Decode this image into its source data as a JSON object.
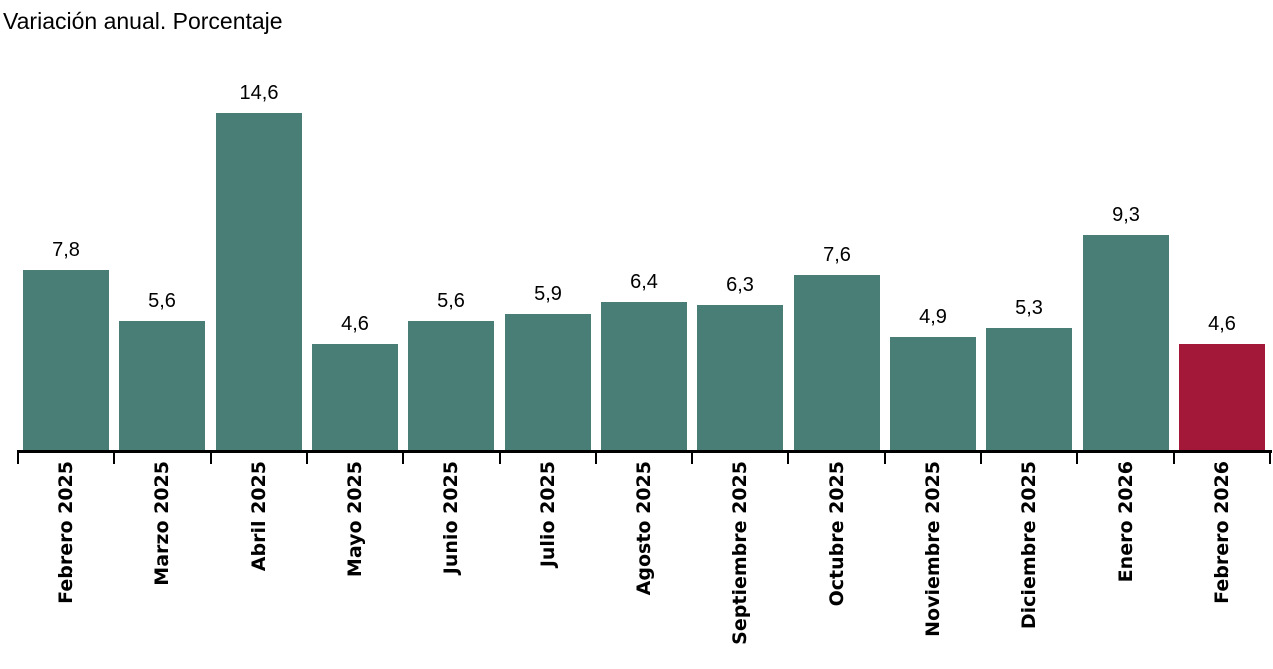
{
  "chart_data": {
    "type": "bar",
    "title": "Variación anual. Porcentaje",
    "categories": [
      "Febrero 2025",
      "Marzo 2025",
      "Abril 2025",
      "Mayo 2025",
      "Junio 2025",
      "Julio 2025",
      "Agosto 2025",
      "Septiembre 2025",
      "Octubre 2025",
      "Noviembre 2025",
      "Diciembre 2025",
      "Enero 2026",
      "Febrero 2026"
    ],
    "values": [
      7.8,
      5.6,
      14.6,
      4.6,
      5.6,
      5.9,
      6.4,
      6.3,
      7.6,
      4.9,
      5.3,
      9.3,
      4.6
    ],
    "value_labels": [
      "7,8",
      "5,6",
      "14,6",
      "4,6",
      "5,6",
      "5,9",
      "6,4",
      "6,3",
      "7,6",
      "4,9",
      "5,3",
      "9,3",
      "4,6"
    ],
    "xlabel": "",
    "ylabel": "",
    "ylim": [
      0,
      19.5
    ],
    "grid": false,
    "legend": "none",
    "decimal_separator": ",",
    "bar_color_default": "#487e76",
    "bar_color_highlight": "#a31838",
    "highlight_index": 12,
    "axis_color": "#000000",
    "label_rotation_deg": -90
  }
}
